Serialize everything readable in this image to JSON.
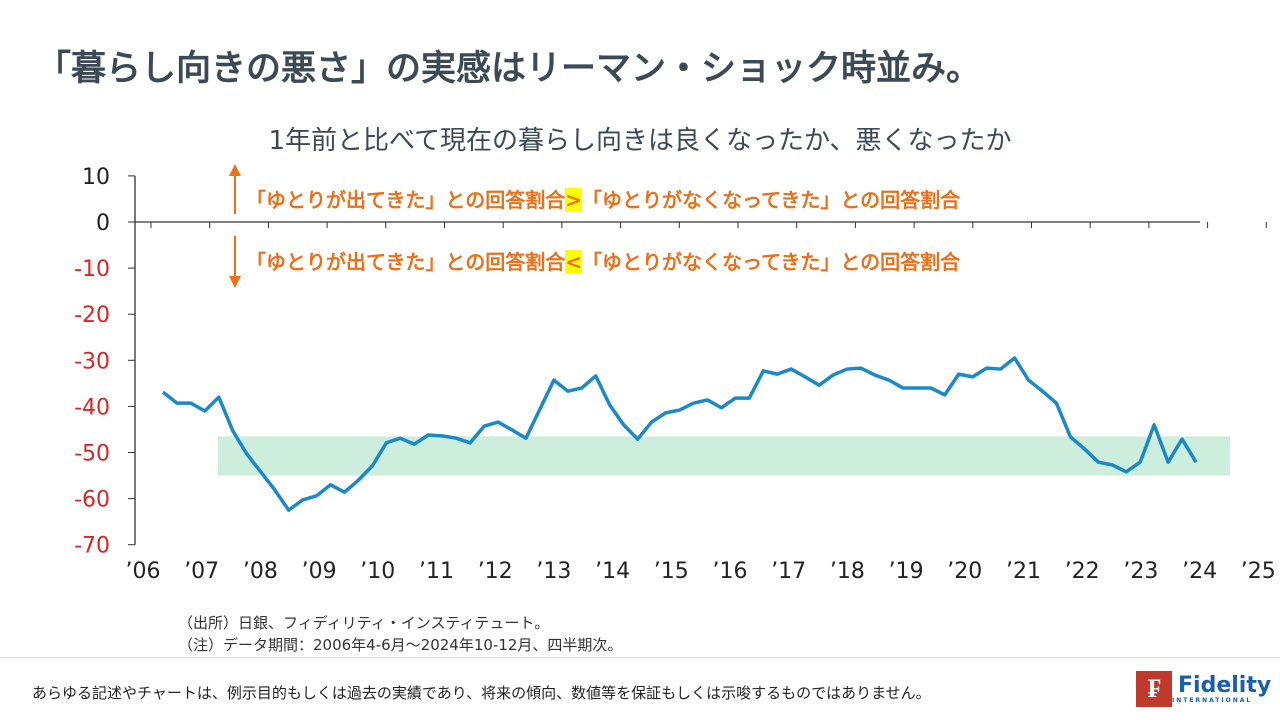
{
  "title": "「暮らし向きの悪さ」の実感はリーマン・ショック時並み。",
  "chart_data": {
    "type": "line",
    "title": "1年前と比べて現在の暮らし向きは良くなったか、悪くなったか",
    "xlabel": "",
    "ylabel": "",
    "ylim": [
      -70,
      10
    ],
    "yticks": [
      "10",
      "0",
      "-10",
      "-20",
      "-30",
      "-40",
      "-50",
      "-60",
      "-70"
    ],
    "ytick_values": [
      10,
      0,
      -10,
      -20,
      -30,
      -40,
      -50,
      -60,
      -70
    ],
    "xticks": [
      "’06",
      "’07",
      "’08",
      "’09",
      "’10",
      "’11",
      "’12",
      "’13",
      "’14",
      "’15",
      "’16",
      "’17",
      "’18",
      "’19",
      "’20",
      "’21",
      "’22",
      "’23",
      "’24",
      "’25"
    ],
    "x_start": "2006 Q2",
    "x_end": "2024 Q4",
    "frequency": "quarterly",
    "values": [
      -36.9,
      -39.3,
      -39.3,
      -41,
      -38,
      -45.3,
      -50.3,
      -54.2,
      -58.1,
      -62.5,
      -60.3,
      -59.4,
      -57,
      -58.6,
      -56,
      -52.9,
      -47.9,
      -46.9,
      -48.2,
      -46.2,
      -46.4,
      -46.9,
      -47.9,
      -44.3,
      -43.4,
      -45.1,
      -46.9,
      -40.6,
      -34.3,
      -36.7,
      -36,
      -33.4,
      -39.7,
      -44,
      -47.1,
      -43.4,
      -41.4,
      -40.8,
      -39.3,
      -38.6,
      -40.3,
      -38.2,
      -38.2,
      -32.3,
      -33,
      -31.9,
      -33.6,
      -35.4,
      -33.2,
      -31.9,
      -31.7,
      -33.2,
      -34.3,
      -36,
      -36,
      -36,
      -37.5,
      -33,
      -33.6,
      -31.7,
      -31.9,
      -29.5,
      -34.3,
      -36.7,
      -39.3,
      -46.6,
      -49.2,
      -52.1,
      -52.7,
      -54.2,
      -52.1,
      -44,
      -52.1,
      -47.1,
      -52.1
    ],
    "band": {
      "y_range": [
        -55,
        -46.5
      ],
      "color": "#cdeedd"
    },
    "line_color": "#1a8ac6",
    "annotations": {
      "upper_a": "「ゆとりが出てきた」との回答割合",
      "upper_op": ">",
      "upper_b": "「ゆとりがなくなってきた」との回答割合",
      "lower_a": "「ゆとりが出てきた」との回答割合",
      "lower_op": "<",
      "lower_b": "「ゆとりがなくなってきた」との回答割合"
    }
  },
  "notes": [
    "（出所）日銀、フィディリティ・インスティテュート。",
    "（注）データ期間：2006年4-6月～2024年10-12月、四半期次。"
  ],
  "disclaimer": "あらゆる記述やチャートは、例示目的もしくは過去の実績であり、将来の傾向、数値等を保証もしくは示唆するものではありません。",
  "logo": {
    "mark": "F",
    "name": "Fidelity",
    "sub": "INTERNATIONAL"
  }
}
